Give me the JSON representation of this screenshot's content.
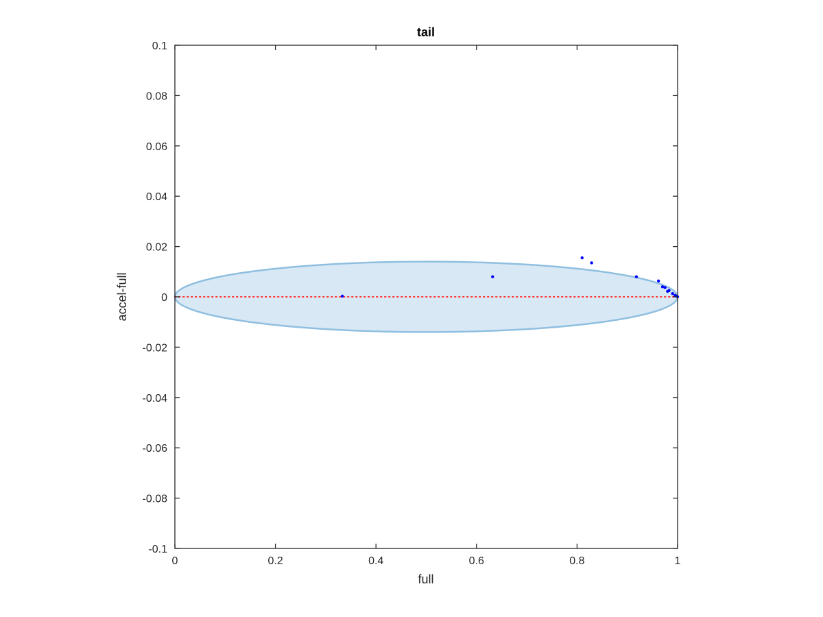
{
  "chart_data": {
    "type": "scatter",
    "title": "tail",
    "xlabel": "full",
    "ylabel": "accel-full",
    "xlim": [
      0,
      1
    ],
    "ylim": [
      -0.1,
      0.1
    ],
    "xticks": [
      0,
      0.2,
      0.4,
      0.6,
      0.8,
      1
    ],
    "xtick_labels": [
      "0",
      "0.2",
      "0.4",
      "0.6",
      "0.8",
      "1"
    ],
    "yticks": [
      0.1,
      0.08,
      0.06,
      0.04,
      0.02,
      0,
      -0.02,
      -0.04,
      -0.06,
      -0.08,
      -0.1
    ],
    "ytick_labels": [
      "0.1",
      "0.08",
      "0.06",
      "0.04",
      "0.02",
      "0",
      "-0.02",
      "-0.04",
      "-0.06",
      "-0.08",
      "-0.1"
    ],
    "grid": false,
    "ellipse": {
      "center": [
        0.5,
        0
      ],
      "semi_axes": [
        0.5,
        0.014
      ],
      "fill_color": "#d9e8f5",
      "edge_color": "#8fbfe0"
    },
    "reference_line": {
      "y": 0,
      "x_range": [
        0,
        1
      ],
      "color": "#ff3333",
      "style": "dotted"
    },
    "series": [
      {
        "color": "#0000ff",
        "points": [
          [
            0.333,
            0.0003
          ],
          [
            0.632,
            0.008
          ],
          [
            0.81,
            0.0155
          ],
          [
            0.829,
            0.0135
          ],
          [
            0.918,
            0.008
          ],
          [
            0.962,
            0.0063
          ],
          [
            0.97,
            0.004
          ],
          [
            0.975,
            0.0037
          ],
          [
            0.98,
            0.0022
          ],
          [
            0.983,
            0.0025
          ],
          [
            0.99,
            0.0013
          ],
          [
            0.995,
            0.0006
          ],
          [
            0.998,
            0.0003
          ],
          [
            1.0,
            0.0
          ]
        ]
      }
    ]
  }
}
